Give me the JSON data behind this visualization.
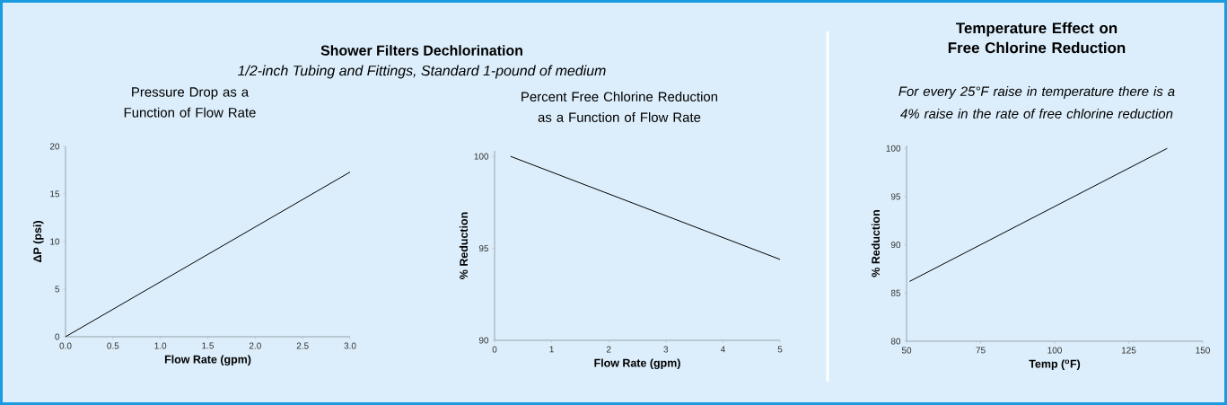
{
  "chart_data": [
    {
      "type": "line",
      "title": "Pressure Drop as a Function of Flow Rate",
      "xlabel": "Flow Rate (gpm)",
      "ylabel": "ΔP (psi)",
      "annotations": [
        "**Shower Filters Dechlorination**",
        "*1/2-inch Tubing and Fittings, Standard 1-pound of medium*"
      ],
      "x": [
        0,
        3.0
      ],
      "values": [
        0,
        17.3
      ],
      "color": "#000000",
      "xlim": [
        0,
        3.0
      ],
      "ylim": [
        0,
        20
      ],
      "xticks": [
        {
          "value": 0,
          "label": "0.0"
        },
        0.5,
        {
          "value": 1,
          "label": "1.0"
        },
        1.5,
        {
          "value": 2,
          "label": "2.0"
        },
        2.5,
        {
          "value": 3,
          "label": "3.0"
        }
      ],
      "yticks": [
        0,
        5,
        10,
        15,
        20
      ]
    },
    {
      "type": "line",
      "title": "Percent Free Chlorine Reduction as a Function of Flow Rate",
      "xlabel": "Flow Rate (gpm)",
      "ylabel": "% Reduction",
      "x": [
        0.28,
        5
      ],
      "values": [
        100,
        94.4
      ],
      "color": "#000000",
      "xlim": [
        0,
        5
      ],
      "ylim": [
        90,
        100.3
      ],
      "xticks": [
        0,
        1,
        2,
        3,
        4,
        5
      ],
      "yticks": [
        90,
        95,
        100
      ]
    },
    {
      "type": "line",
      "title": "Temperature Effect on Free Chlorine Reduction",
      "subtitle": "For every 25°F raise in temperature there is a 4% raise in the rate of free chlorine reduction",
      "xlabel": "Temp ($^{o}$F)",
      "ylabel": "% Reduction",
      "x": [
        51,
        138
      ],
      "values": [
        86.2,
        100
      ],
      "color": "#000000",
      "xlim": [
        50,
        150
      ],
      "ylim": [
        80,
        100.3
      ],
      "xticks": [
        50,
        75,
        100,
        125,
        150
      ],
      "yticks": [
        80,
        85,
        90,
        95,
        100
      ]
    }
  ]
}
